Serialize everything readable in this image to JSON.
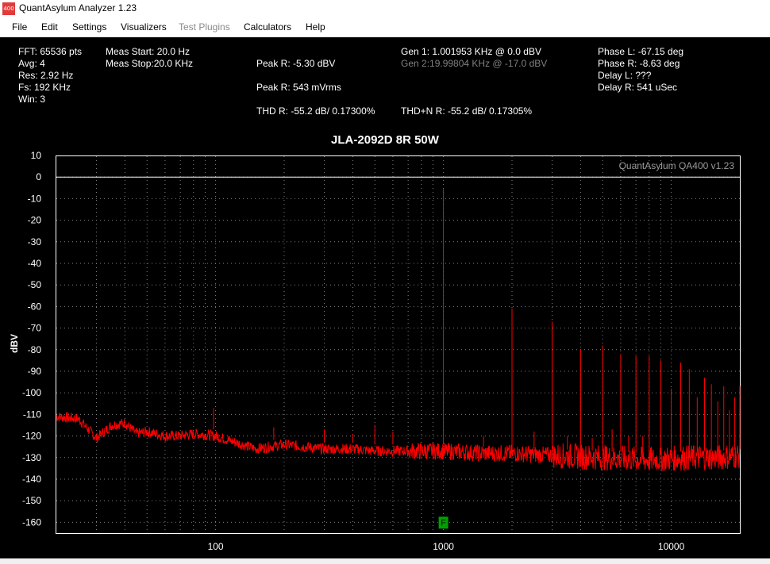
{
  "window": {
    "title": "QuantAsylum Analyzer 1.23",
    "icon_text": "400",
    "icon_name": "qa400-app-icon"
  },
  "menu": [
    {
      "label": "File",
      "enabled": true
    },
    {
      "label": "Edit",
      "enabled": true
    },
    {
      "label": "Settings",
      "enabled": true
    },
    {
      "label": "Visualizers",
      "enabled": true
    },
    {
      "label": "Test Plugins",
      "enabled": false
    },
    {
      "label": "Calculators",
      "enabled": true
    },
    {
      "label": "Help",
      "enabled": true
    }
  ],
  "readouts": {
    "fft": "FFT: 65536 pts",
    "avg": "Avg: 4",
    "res": "Res: 2.92 Hz",
    "fs": "Fs: 192 KHz",
    "win": "Win: 3",
    "meas_start": "Meas Start: 20.0 Hz",
    "meas_stop": "Meas Stop:20.0 KHz",
    "peak_r_dbv": "Peak R: -5.30 dBV",
    "peak_r_vrms": "Peak R: 543 mVrms",
    "thd_r": "THD R: -55.2 dB/ 0.17300%",
    "thdn_r": "THD+N R: -55.2 dB/ 0.17305%",
    "gen1": "Gen 1: 1.001953 KHz @ 0.0  dBV",
    "gen2": "Gen 2:19.99804 KHz @ -17.0  dBV",
    "phase_l": "Phase L: -67.15 deg",
    "phase_r": "Phase R: -8.63 deg",
    "delay_l": "Delay L: ???",
    "delay_r": "Delay R: 541 uSec"
  },
  "colors": {
    "background": "#000000",
    "trace": "#ff0000",
    "grid": "#808080",
    "frame": "#ffffff",
    "marker": "#00a000",
    "dim_text": "#808080"
  },
  "chart_data": {
    "type": "line",
    "title": "JLA-2092D 8R 50W",
    "watermark": "QuantAsylum QA400 v1.23",
    "xlabel": "",
    "ylabel": "dBV",
    "xscale": "log",
    "xlim": [
      20,
      20000
    ],
    "ylim": [
      -165,
      10
    ],
    "y_ticks": [
      10,
      0,
      -10,
      -20,
      -30,
      -40,
      -50,
      -60,
      -70,
      -80,
      -90,
      -100,
      -110,
      -120,
      -130,
      -140,
      -150,
      -160
    ],
    "x_tick_labels": [
      {
        "value": 100,
        "label": "100"
      },
      {
        "value": 1000,
        "label": "1000"
      },
      {
        "value": 10000,
        "label": "10000"
      }
    ],
    "grid": true,
    "reference_line_dbv": 0,
    "marker": {
      "label": "F",
      "x": 1000,
      "y": -160
    },
    "series": [
      {
        "name": "R",
        "noise_floor": [
          [
            20,
            -111
          ],
          [
            25,
            -112
          ],
          [
            30,
            -121
          ],
          [
            35,
            -115
          ],
          [
            40,
            -114
          ],
          [
            45,
            -119
          ],
          [
            50,
            -118
          ],
          [
            60,
            -120
          ],
          [
            70,
            -120
          ],
          [
            80,
            -119
          ],
          [
            100,
            -120
          ],
          [
            150,
            -126
          ],
          [
            200,
            -124
          ],
          [
            300,
            -126
          ],
          [
            400,
            -126
          ],
          [
            500,
            -127
          ],
          [
            700,
            -127
          ],
          [
            1000,
            -127
          ],
          [
            1500,
            -128
          ],
          [
            2000,
            -128
          ],
          [
            3000,
            -129
          ],
          [
            5000,
            -130
          ],
          [
            8000,
            -131
          ],
          [
            12000,
            -130
          ],
          [
            16000,
            -130
          ],
          [
            20000,
            -129
          ]
        ],
        "peaks": [
          [
            98,
            -107
          ],
          [
            180,
            -116
          ],
          [
            300,
            -117
          ],
          [
            400,
            -119
          ],
          [
            500,
            -115
          ],
          [
            600,
            -118
          ],
          [
            1000,
            -5.3
          ],
          [
            2000,
            -61
          ],
          [
            3000,
            -67
          ],
          [
            4000,
            -80
          ],
          [
            5000,
            -78
          ],
          [
            6000,
            -82
          ],
          [
            7000,
            -83
          ],
          [
            8000,
            -83
          ],
          [
            9000,
            -85
          ],
          [
            10000,
            -98
          ],
          [
            11000,
            -86
          ],
          [
            12000,
            -89
          ],
          [
            13000,
            -102
          ],
          [
            14000,
            -93
          ],
          [
            15000,
            -96
          ],
          [
            16000,
            -104
          ],
          [
            17000,
            -97
          ],
          [
            18000,
            -108
          ],
          [
            19000,
            -102
          ],
          [
            20000,
            -97
          ],
          [
            1500,
            -120
          ],
          [
            2500,
            -118
          ],
          [
            3500,
            -120
          ],
          [
            4500,
            -121
          ],
          [
            5500,
            -117
          ],
          [
            6500,
            -120
          ],
          [
            7500,
            -120
          ]
        ]
      }
    ]
  }
}
